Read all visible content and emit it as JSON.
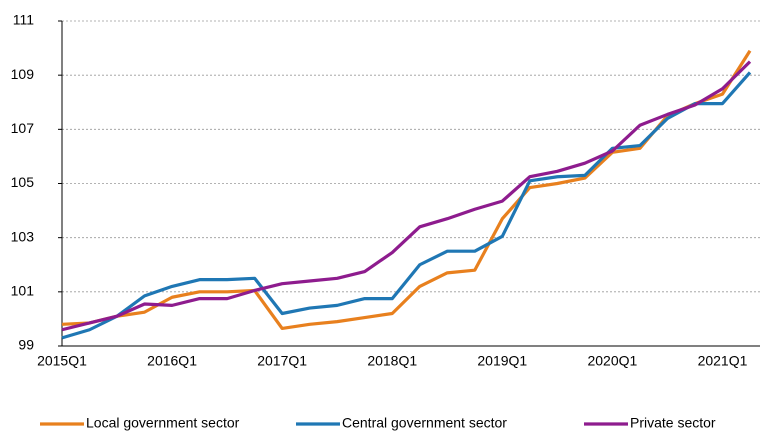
{
  "chart_data": {
    "type": "line",
    "categories": [
      "2015Q1",
      null,
      null,
      null,
      "2016Q1",
      null,
      null,
      null,
      "2017Q1",
      null,
      null,
      null,
      "2018Q1",
      null,
      null,
      null,
      "2019Q1",
      null,
      null,
      null,
      "2020Q1",
      null,
      null,
      null,
      "2021Q1",
      null
    ],
    "series": [
      {
        "name": "Local government sector",
        "color": "#e8801e",
        "values": [
          99.8,
          99.85,
          100.1,
          100.25,
          100.8,
          101.0,
          101.0,
          101.05,
          99.65,
          99.8,
          99.9,
          100.05,
          100.2,
          101.2,
          101.7,
          101.8,
          103.7,
          104.85,
          105.0,
          105.2,
          106.15,
          106.3,
          107.5,
          107.95,
          108.3,
          109.9
        ]
      },
      {
        "name": "Central government sector",
        "color": "#1f77b4",
        "values": [
          99.3,
          99.6,
          100.1,
          100.85,
          101.2,
          101.45,
          101.45,
          101.5,
          100.2,
          100.4,
          100.5,
          100.75,
          100.75,
          102.0,
          102.5,
          102.5,
          103.05,
          105.1,
          105.25,
          105.3,
          106.3,
          106.4,
          107.4,
          107.95,
          107.95,
          109.1
        ]
      },
      {
        "name": "Private sector",
        "color": "#8e1c8e",
        "values": [
          99.6,
          99.85,
          100.1,
          100.55,
          100.5,
          100.75,
          100.75,
          101.05,
          101.3,
          101.4,
          101.5,
          101.75,
          102.45,
          103.4,
          103.7,
          104.05,
          104.35,
          105.25,
          105.45,
          105.75,
          106.2,
          107.15,
          107.55,
          107.9,
          108.5,
          109.5
        ]
      }
    ],
    "ylim": [
      99,
      111
    ],
    "yticks": [
      99,
      101,
      103,
      105,
      107,
      109,
      111
    ],
    "grid": true,
    "legend": "bottom"
  }
}
